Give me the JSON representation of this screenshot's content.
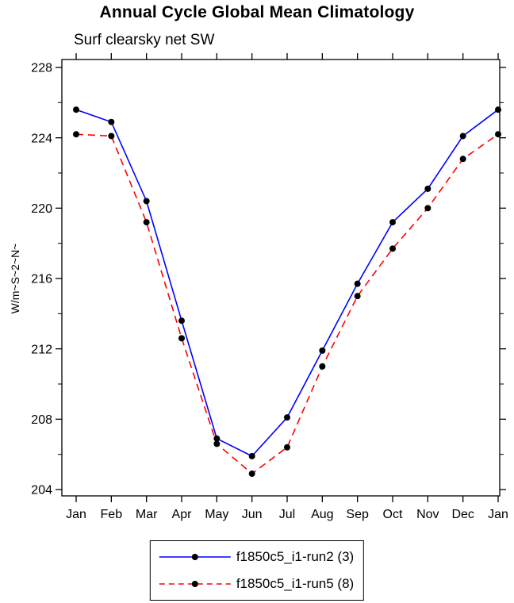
{
  "header": {
    "title": "Annual Cycle Global Mean Climatology",
    "subtitle": "Surf clearsky net SW"
  },
  "chart_data": {
    "type": "line",
    "title": "Annual Cycle Global Mean Climatology",
    "subtitle": "Surf clearsky net SW",
    "ylabel": "W/m~S~2~N~",
    "xlabel": "",
    "categories": [
      "Jan",
      "Feb",
      "Mar",
      "Apr",
      "May",
      "Jun",
      "Jul",
      "Aug",
      "Sep",
      "Oct",
      "Nov",
      "Dec",
      "Jan"
    ],
    "series": [
      {
        "name": "f1850c5_i1-run2 (3)",
        "color": "#0000ff",
        "dash": "solid",
        "values": [
          225.6,
          224.9,
          220.4,
          213.6,
          206.9,
          205.9,
          208.1,
          211.9,
          215.7,
          219.2,
          221.1,
          224.1,
          225.6
        ]
      },
      {
        "name": "f1850c5_i1-run5 (8)",
        "color": "#ff0000",
        "dash": "dashed",
        "values": [
          224.2,
          224.1,
          219.2,
          212.6,
          206.6,
          204.9,
          206.4,
          211.0,
          215.0,
          217.7,
          220.0,
          222.8,
          224.2
        ]
      }
    ],
    "ylim": [
      204,
      228
    ],
    "yticks": [
      204,
      208,
      212,
      216,
      220,
      224,
      228
    ],
    "minor_step": 2,
    "marker": "filled-circle",
    "marker_color": "#000000",
    "grid": false,
    "legend_position": "bottom",
    "frame_color": "#000000"
  }
}
